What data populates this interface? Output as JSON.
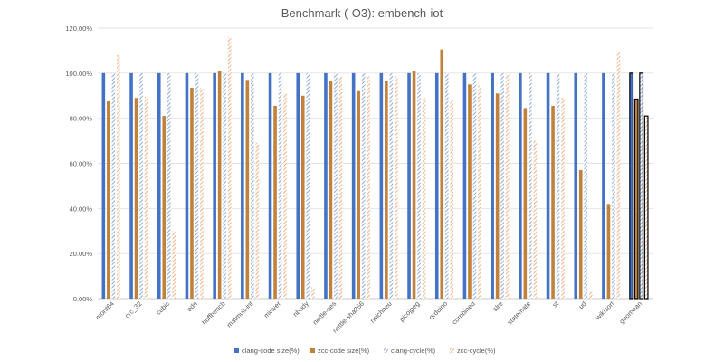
{
  "chart_data": {
    "type": "bar",
    "title": "Benchmark (-O3): embench-iot",
    "xlabel": "",
    "ylabel": "",
    "ylim": [
      0,
      120
    ],
    "yticks": [
      0,
      20,
      40,
      60,
      80,
      100,
      120
    ],
    "ytick_labels": [
      "0.00%",
      "20.00%",
      "40.00%",
      "60.00%",
      "80.00%",
      "100.00%",
      "120.00%"
    ],
    "grid": true,
    "legend_position": "bottom",
    "categories": [
      "mont64",
      "crc_32",
      "cubic",
      "edn",
      "huffbench",
      "matmult-int",
      "minver",
      "nbody",
      "nettle-aes",
      "nettle-sha256",
      "nsichneu",
      "picojpeg",
      "qrduino",
      "combined",
      "slre",
      "statemate",
      "st",
      "ud",
      "wikisort",
      "geomean"
    ],
    "series": [
      {
        "name": "clang-code size(%)",
        "color": "#4472c4",
        "pattern": "solid",
        "values": [
          100,
          100,
          100,
          100,
          100,
          100,
          100,
          100,
          100,
          100,
          100,
          100,
          100,
          100,
          100,
          100,
          100,
          100,
          100,
          100
        ]
      },
      {
        "name": "zcc-code size(%)",
        "color": "#c0813a",
        "pattern": "solid",
        "values": [
          87.5,
          89,
          81,
          93.5,
          101,
          97,
          85.5,
          90,
          96.5,
          92,
          96.5,
          101,
          110.5,
          95,
          91,
          84.5,
          85.5,
          57,
          42,
          88.5
        ]
      },
      {
        "name": "clang-cycle(%)",
        "color": "#8ea9db",
        "pattern": "hatch",
        "values": [
          100,
          100,
          100,
          100,
          100,
          100,
          100,
          100,
          100,
          100,
          100,
          100,
          100,
          100,
          100,
          100,
          100,
          100,
          100,
          100
        ]
      },
      {
        "name": "zcc-cycle(%)",
        "color": "#f4b183",
        "pattern": "hatch",
        "values": [
          108,
          89.5,
          30,
          93.5,
          116,
          69,
          91,
          5,
          98.5,
          98.5,
          98.5,
          89,
          88,
          94.5,
          99.5,
          70,
          89,
          3,
          109.5,
          81
        ]
      }
    ],
    "highlighted_category": "geomean"
  }
}
